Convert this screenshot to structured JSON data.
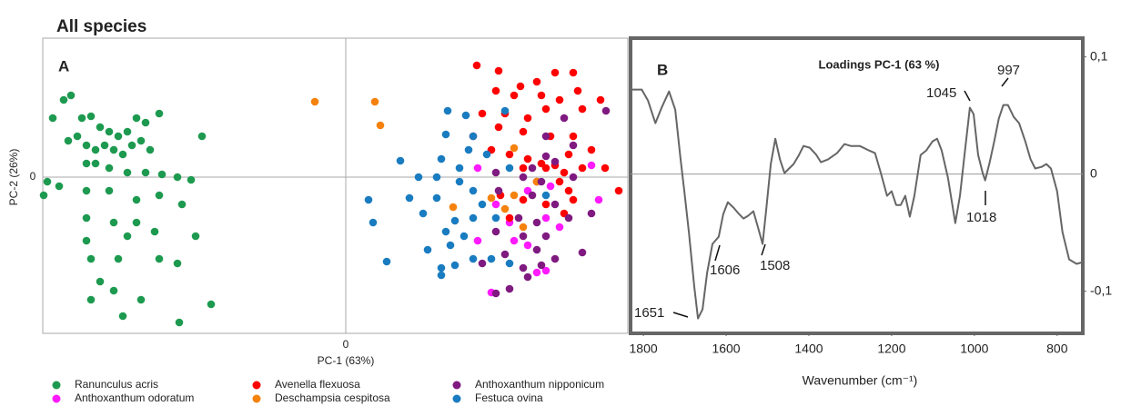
{
  "title": "All species",
  "chart_data": [
    {
      "type": "scatter",
      "panel_label": "A",
      "x_label": "PC-1 (63%)",
      "y_label": "PC-2 (26%)",
      "xlim": [
        -333,
        310
      ],
      "ylim": [
        -172,
        153
      ],
      "xticks": [
        0
      ],
      "yticks": [
        0
      ],
      "series": [
        {
          "name": "Ranunculus acris",
          "color": "#1d9a4f",
          "x": [
            -310,
            -302,
            -322,
            -290,
            -280,
            -270,
            -260,
            -250,
            -240,
            -230,
            -220,
            -205,
            -305,
            -295,
            -285,
            -275,
            -265,
            -255,
            -245,
            -235,
            -225,
            -215,
            -285,
            -275,
            -260,
            -240,
            -220,
            -202,
            -185,
            -170,
            -328,
            -315,
            -285,
            -260,
            -230,
            -205,
            -180,
            -285,
            -255,
            -230,
            -285,
            -240,
            -210,
            -165,
            -280,
            -250,
            -205,
            -185,
            -270,
            -255,
            -225,
            -280,
            -148,
            -245,
            -183,
            -158,
            -332
          ],
          "y": [
            85,
            90,
            65,
            65,
            67,
            55,
            50,
            45,
            50,
            65,
            60,
            70,
            40,
            45,
            35,
            30,
            35,
            30,
            25,
            35,
            40,
            30,
            15,
            15,
            10,
            5,
            5,
            3,
            0,
            -3,
            -5,
            -10,
            -15,
            -15,
            -25,
            -20,
            -30,
            -45,
            -50,
            -50,
            -70,
            -65,
            -60,
            -65,
            -90,
            -90,
            -90,
            -95,
            -115,
            -125,
            -135,
            -135,
            -140,
            -153,
            -160,
            45,
            -20
          ]
        },
        {
          "name": "Anthoxanthum odoratum",
          "color": "#ff1aff",
          "x": [
            145,
            270,
            200,
            225,
            165,
            220,
            180,
            145,
            185,
            235,
            278,
            160,
            210,
            220,
            200
          ],
          "y": [
            10,
            13,
            -15,
            -10,
            -30,
            -45,
            -50,
            -70,
            -70,
            -55,
            -25,
            -127,
            -105,
            -103,
            -75
          ]
        },
        {
          "name": "Avenella flexuosa",
          "color": "#ff0000",
          "x": [
            144,
            168,
            192,
            210,
            230,
            250,
            165,
            185,
            215,
            235,
            255,
            280,
            150,
            175,
            200,
            220,
            260,
            140,
            168,
            195,
            225,
            250,
            160,
            180,
            200,
            215,
            230,
            245,
            270,
            195,
            220,
            240,
            260,
            210,
            235,
            245,
            170,
            195,
            220,
            250,
            300,
            285,
            240,
            180
          ],
          "y": [
            123,
            117,
            100,
            105,
            115,
            115,
            95,
            90,
            90,
            85,
            95,
            85,
            70,
            70,
            65,
            75,
            75,
            45,
            55,
            50,
            45,
            45,
            30,
            25,
            20,
            15,
            13,
            25,
            30,
            10,
            10,
            5,
            10,
            -5,
            -5,
            -15,
            -20,
            -25,
            -30,
            -25,
            -15,
            10,
            -40,
            -45
          ]
        },
        {
          "name": "Deschampsia cespitosa",
          "color": "#f5820d",
          "x": [
            -34,
            32,
            38,
            185,
            160,
            185,
            175,
            118,
            210,
            195
          ],
          "y": [
            83,
            83,
            57,
            32,
            -23,
            -20,
            -35,
            -33,
            -5,
            -55
          ]
        },
        {
          "name": "Anthoxanthum nipponicum",
          "color": "#7f1a80",
          "x": [
            240,
            286,
            220,
            250,
            220,
            205,
            230,
            165,
            195,
            215,
            250,
            168,
            205,
            230,
            245,
            190,
            210,
            270,
            165,
            195,
            220,
            175,
            210,
            230,
            260,
            150,
            195,
            215,
            200,
            180,
            165
          ],
          "y": [
            65,
            73,
            45,
            35,
            23,
            10,
            17,
            5,
            0,
            -5,
            0,
            -15,
            -20,
            -30,
            -45,
            -45,
            -50,
            -40,
            -60,
            -65,
            -65,
            -85,
            -80,
            -90,
            -83,
            -95,
            -100,
            -97,
            -110,
            -123,
            -128
          ]
        },
        {
          "name": "Festuca ovina",
          "color": "#1a7cc0",
          "x": [
            112,
            132,
            175,
            140,
            110,
            135,
            60,
            105,
            125,
            155,
            180,
            100,
            80,
            125,
            70,
            100,
            140,
            25,
            150,
            85,
            120,
            140,
            30,
            165,
            110,
            130,
            90,
            115,
            140,
            105,
            120,
            45,
            105,
            160,
            180,
            220
          ],
          "y": [
            73,
            68,
            73,
            45,
            47,
            30,
            18,
            20,
            10,
            25,
            10,
            0,
            0,
            -5,
            -23,
            -23,
            -15,
            -25,
            -30,
            -40,
            -48,
            -45,
            -50,
            -45,
            -60,
            -65,
            -80,
            -75,
            -90,
            -100,
            -97,
            -93,
            -108,
            -90,
            -95,
            -20
          ]
        }
      ]
    },
    {
      "type": "line",
      "panel_label": "B",
      "title": "Loadings PC-1 (63 %)",
      "x_label": "Wavenumber (cm⁻¹)",
      "xlim": [
        1831,
        738
      ],
      "ylim": [
        -0.136,
        0.116
      ],
      "xticks": [
        1800,
        1600,
        1400,
        1200,
        1000,
        800
      ],
      "yticks": [
        {
          "value": 0.1,
          "label": "0,1"
        },
        0,
        {
          "value": -0.1,
          "label": "-0,1"
        }
      ],
      "color": "#666666",
      "annotations": [
        "1651",
        "1606",
        "1508",
        "1045",
        "1018",
        "997"
      ],
      "x": [
        1831,
        1804,
        1789,
        1771,
        1756,
        1738,
        1723,
        1710,
        1701,
        1690,
        1677,
        1668,
        1657,
        1646,
        1633,
        1618,
        1607,
        1596,
        1582,
        1569,
        1558,
        1547,
        1534,
        1523,
        1512,
        1503,
        1492,
        1481,
        1470,
        1459,
        1448,
        1437,
        1424,
        1413,
        1398,
        1382,
        1371,
        1354,
        1332,
        1314,
        1299,
        1277,
        1255,
        1240,
        1226,
        1211,
        1200,
        1189,
        1178,
        1167,
        1156,
        1145,
        1130,
        1116,
        1101,
        1090,
        1079,
        1064,
        1046,
        1035,
        1024,
        1011,
        1002,
        991,
        980,
        974,
        963,
        952,
        941,
        930,
        919,
        905,
        892,
        877,
        864,
        853,
        837,
        826,
        815,
        800,
        787,
        771,
        753,
        738
      ],
      "values": [
        0.0721,
        0.0721,
        0.0628,
        0.0434,
        0.0566,
        0.0705,
        0.055,
        0.0124,
        -0.0147,
        -0.0496,
        -0.0961,
        -0.1233,
        -0.1155,
        -0.0845,
        -0.0597,
        -0.0535,
        -0.0341,
        -0.024,
        -0.0287,
        -0.0341,
        -0.038,
        -0.0357,
        -0.0318,
        -0.0457,
        -0.0597,
        -0.0302,
        0.0085,
        0.0302,
        0.0124,
        0.0008,
        0.0047,
        0.0085,
        0.0163,
        0.024,
        0.0225,
        0.0163,
        0.0101,
        0.0124,
        0.0178,
        0.0256,
        0.024,
        0.024,
        0.0202,
        0.0178,
        0.0008,
        -0.0186,
        -0.0147,
        -0.0264,
        -0.0264,
        -0.0186,
        -0.0364,
        -0.0186,
        0.0163,
        0.0202,
        0.0279,
        0.0302,
        0.0202,
        -0.0031,
        -0.0419,
        -0.0186,
        0.0163,
        0.0566,
        0.0512,
        0.0163,
        0.0008,
        -0.0054,
        0.0101,
        0.0279,
        0.0473,
        0.0589,
        0.0589,
        0.0488,
        0.0434,
        0.0279,
        0.0124,
        0.0047,
        0.0062,
        0.0085,
        0.0047,
        -0.0147,
        -0.0496,
        -0.0729,
        -0.0767,
        -0.0752
      ]
    }
  ]
}
